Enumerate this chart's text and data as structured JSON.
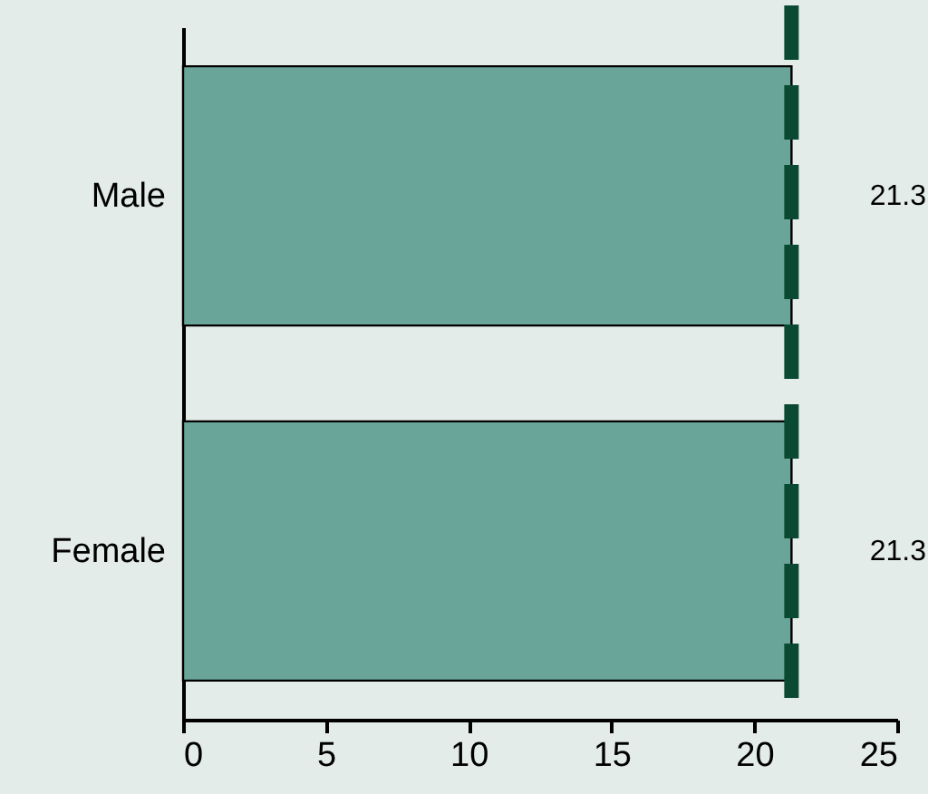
{
  "chart_data": {
    "type": "bar",
    "orientation": "horizontal",
    "categories": [
      "Male",
      "Female"
    ],
    "values": [
      21.3,
      21.3
    ],
    "color": "#6aa59a",
    "data_labels": true,
    "xlim": [
      0,
      25
    ],
    "xticks": [
      0,
      5,
      10,
      15,
      20,
      25
    ],
    "grid": false,
    "ref_lines": [
      {
        "axis": "x",
        "value": 21.3,
        "color": "#0a4a33",
        "line_style": "dashed"
      }
    ]
  }
}
